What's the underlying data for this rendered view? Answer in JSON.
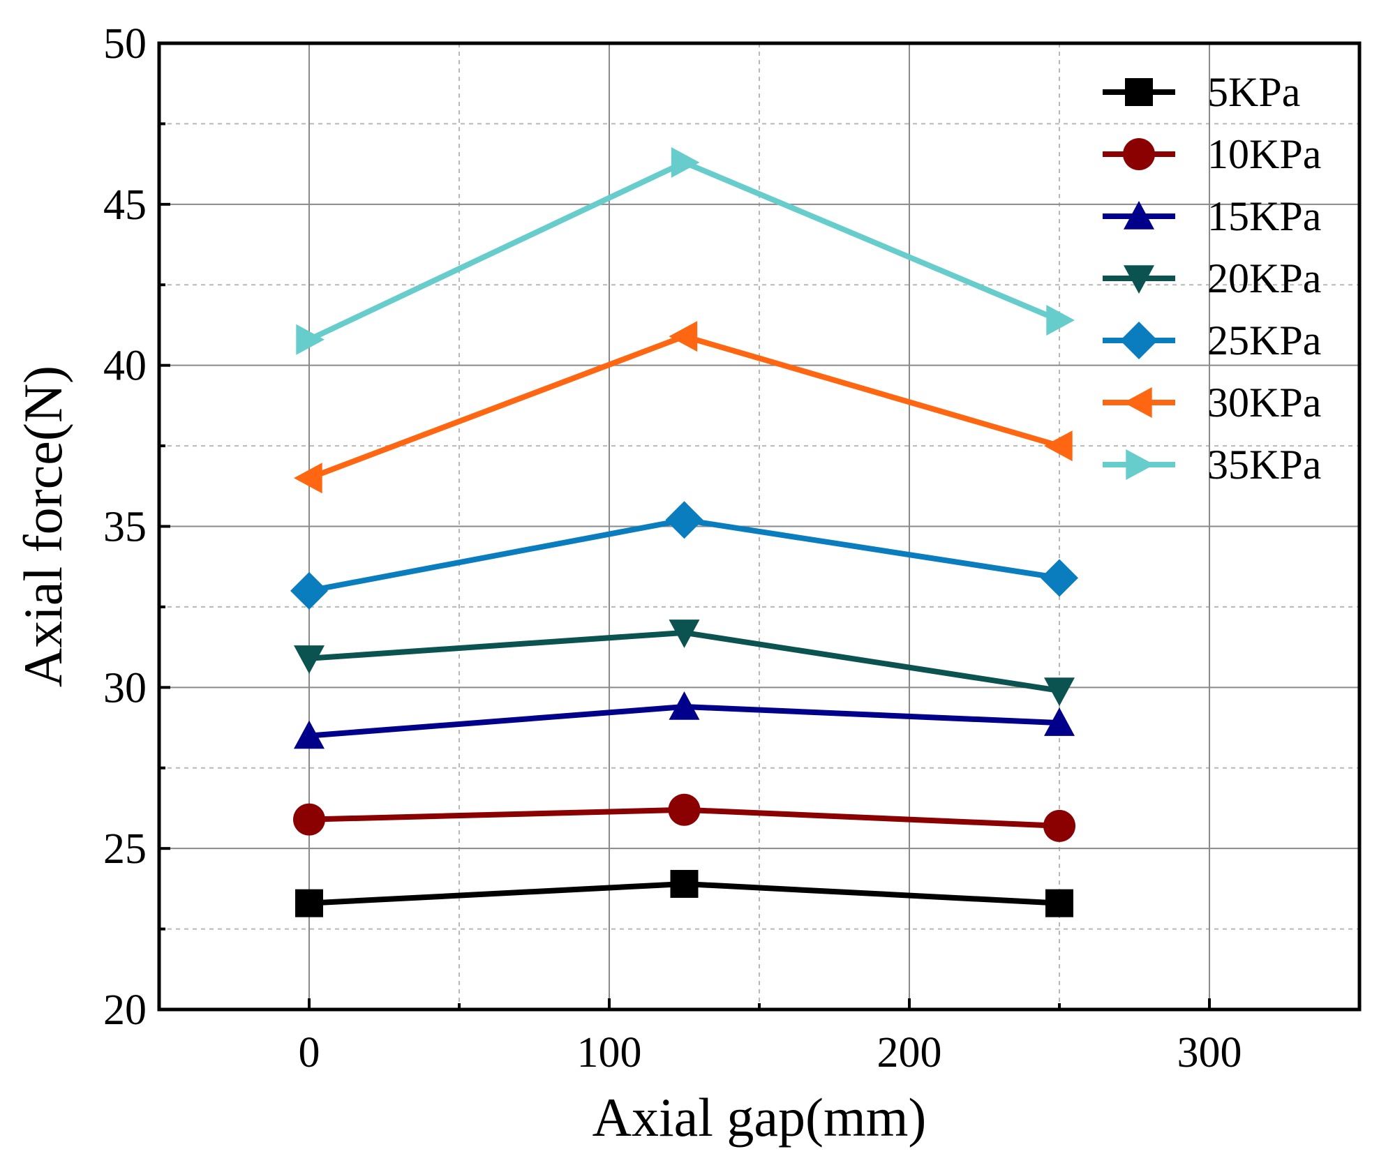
{
  "chart_data": {
    "type": "line",
    "title": "",
    "xlabel": "Axial gap(mm)",
    "ylabel": "Axial force(N)",
    "xlim": [
      -50,
      350
    ],
    "ylim": [
      20,
      50
    ],
    "xticks": [
      0,
      100,
      200,
      300
    ],
    "xtick_labels": [
      "0",
      "100",
      "200",
      "300"
    ],
    "yticks": [
      20,
      25,
      30,
      35,
      40,
      45,
      50
    ],
    "ytick_labels": [
      "20",
      "25",
      "30",
      "35",
      "40",
      "45",
      "50"
    ],
    "minor_grid_x": [
      50,
      150,
      250
    ],
    "minor_grid_y": [
      22.5,
      27.5,
      32.5,
      37.5,
      42.5,
      47.5
    ],
    "grid": true,
    "legend_position": "top-right",
    "x": [
      0,
      125,
      250
    ],
    "series": [
      {
        "name": "5KPa",
        "values": [
          23.3,
          23.9,
          23.3
        ],
        "color": "#000000",
        "marker": "square"
      },
      {
        "name": "10KPa",
        "values": [
          25.9,
          26.2,
          25.7
        ],
        "color": "#8B0000",
        "marker": "circle"
      },
      {
        "name": "15KPa",
        "values": [
          28.5,
          29.4,
          28.9
        ],
        "color": "#00008B",
        "marker": "triangle-up"
      },
      {
        "name": "20KPa",
        "values": [
          30.9,
          31.7,
          29.9
        ],
        "color": "#0B5350",
        "marker": "triangle-down"
      },
      {
        "name": "25KPa",
        "values": [
          33.0,
          35.2,
          33.4
        ],
        "color": "#0A7DBE",
        "marker": "diamond"
      },
      {
        "name": "30KPa",
        "values": [
          36.5,
          40.9,
          37.5
        ],
        "color": "#FF6611",
        "marker": "triangle-left"
      },
      {
        "name": "35KPa",
        "values": [
          40.8,
          46.3,
          41.4
        ],
        "color": "#66CCCC",
        "marker": "triangle-right"
      }
    ]
  }
}
